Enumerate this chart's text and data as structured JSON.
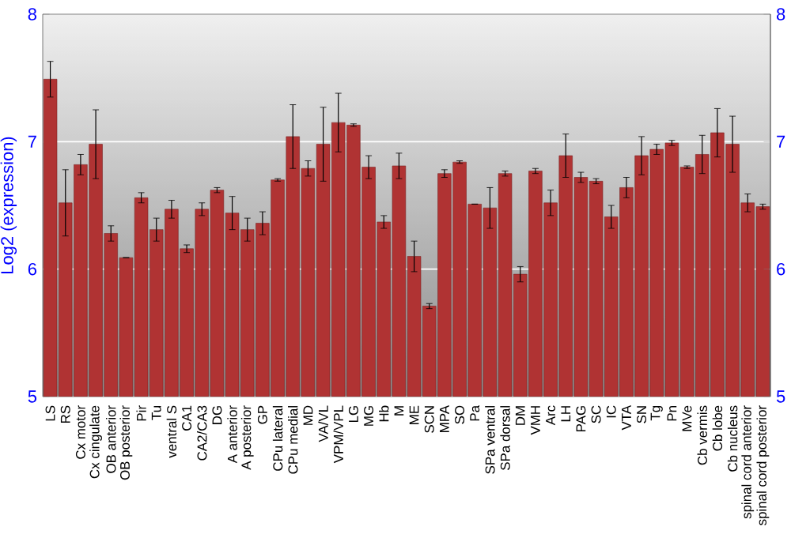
{
  "chart_data": {
    "type": "bar",
    "ylabel": "Log2 (expression)",
    "categories": [
      "LS",
      "RS",
      "Cx motor",
      "Cx cingulate",
      "OB anterior",
      "OB posterior",
      "Pir",
      "Tu",
      "ventral S",
      "CA1",
      "CA2/CA3",
      "DG",
      "A anterior",
      "A posterior",
      "GP",
      "CPu lateral",
      "CPu medial",
      "MD",
      "VA/VL",
      "VPM/VPL",
      "LG",
      "MG",
      "Hb",
      "M",
      "ME",
      "SCN",
      "MPA",
      "SO",
      "Pa",
      "SPa ventral",
      "SPa dorsal",
      "DM",
      "VMH",
      "Arc",
      "LH",
      "PAG",
      "SC",
      "IC",
      "VTA",
      "SN",
      "Tg",
      "Pn",
      "MVe",
      "Cb vermis",
      "Cb lobe",
      "Cb nucleus",
      "spinal cord anterior",
      "spinal cord posterior"
    ],
    "values": [
      7.49,
      6.52,
      6.82,
      6.98,
      6.28,
      6.09,
      6.56,
      6.31,
      6.47,
      6.16,
      6.47,
      6.62,
      6.44,
      6.31,
      6.36,
      6.7,
      7.04,
      6.79,
      6.98,
      7.15,
      7.13,
      6.8,
      6.37,
      6.81,
      6.1,
      5.71,
      6.75,
      6.84,
      6.51,
      6.48,
      6.75,
      5.96,
      6.77,
      6.52,
      6.89,
      6.72,
      6.69,
      6.41,
      6.64,
      6.89,
      6.94,
      6.99,
      6.8,
      6.9,
      7.07,
      6.98,
      6.52,
      6.49
    ],
    "errors": [
      0.14,
      0.26,
      0.08,
      0.27,
      0.06,
      null,
      0.04,
      0.09,
      0.07,
      0.03,
      0.05,
      0.02,
      0.13,
      0.09,
      0.09,
      0.01,
      0.25,
      0.06,
      0.29,
      0.23,
      0.01,
      0.09,
      0.05,
      0.1,
      0.12,
      0.02,
      0.03,
      0.01,
      null,
      0.16,
      0.02,
      0.06,
      0.02,
      0.1,
      0.17,
      0.04,
      0.02,
      0.09,
      0.08,
      0.15,
      0.04,
      0.02,
      0.01,
      0.15,
      0.19,
      0.22,
      0.07,
      0.02
    ],
    "color": "#b03333",
    "ylim": [
      5,
      8
    ],
    "yticks": [
      5,
      6,
      7,
      8
    ],
    "y2lim": [
      5,
      8
    ],
    "y2ticks": [
      5,
      6,
      7,
      8
    ],
    "grid": "y"
  }
}
